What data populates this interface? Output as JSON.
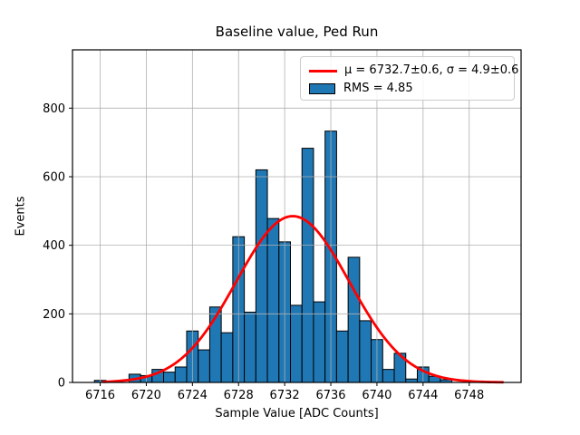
{
  "title": "Baseline value, Ped Run",
  "xlabel": "Sample Value [ADC Counts]",
  "ylabel": "Events",
  "legend": {
    "fit_label": "μ = 6732.7±0.6, σ = 4.9±0.6",
    "hist_label": "RMS = 4.85"
  },
  "colors": {
    "bar_fill": "#1f77b4",
    "bar_edge": "#000000",
    "fit_line": "#ff0000",
    "grid": "#b0b0b0",
    "axis": "#000000",
    "background": "#ffffff"
  },
  "chart_data": {
    "type": "bar",
    "subtype": "histogram",
    "title": "Baseline value, Ped Run",
    "xlabel": "Sample Value [ADC Counts]",
    "ylabel": "Events",
    "bin_width": 1,
    "categories": [
      6716,
      6717,
      6718,
      6719,
      6720,
      6721,
      6722,
      6723,
      6724,
      6725,
      6726,
      6727,
      6728,
      6729,
      6730,
      6731,
      6732,
      6733,
      6734,
      6735,
      6736,
      6737,
      6738,
      6739,
      6740,
      6741,
      6742,
      6743,
      6744,
      6745,
      6746
    ],
    "values": [
      6,
      0,
      0,
      24,
      20,
      38,
      30,
      45,
      150,
      95,
      220,
      145,
      425,
      205,
      620,
      478,
      410,
      225,
      683,
      235,
      733,
      150,
      365,
      180,
      125,
      38,
      85,
      10,
      45,
      18,
      8
    ],
    "fit_curve": {
      "type": "gaussian",
      "mu": 6732.7,
      "mu_err": 0.6,
      "sigma": 4.9,
      "sigma_err": 0.6,
      "amplitude": 485,
      "x_range": [
        6716.3,
        6750.9
      ]
    },
    "rms": 4.85,
    "xlim": [
      6713.6,
      6752.5
    ],
    "ylim": [
      0,
      970
    ],
    "xticks": [
      6716,
      6720,
      6724,
      6728,
      6732,
      6736,
      6740,
      6744,
      6748
    ],
    "yticks": [
      0,
      200,
      400,
      600,
      800
    ],
    "grid": true,
    "grid_above_bars": true,
    "legend_position": "upper right"
  }
}
